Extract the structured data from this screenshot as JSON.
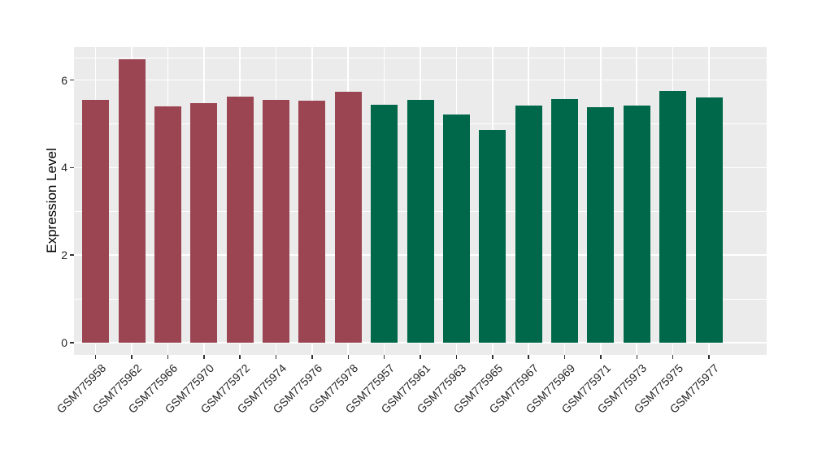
{
  "chart_data": {
    "type": "bar",
    "title": "",
    "xlabel": "",
    "ylabel": "Expression Level",
    "categories": [
      "GSM775958",
      "GSM775962",
      "GSM775966",
      "GSM775970",
      "GSM775972",
      "GSM775974",
      "GSM775976",
      "GSM775978",
      "GSM775957",
      "GSM775961",
      "GSM775963",
      "GSM775965",
      "GSM775967",
      "GSM775969",
      "GSM775971",
      "GSM775973",
      "GSM775975",
      "GSM775977"
    ],
    "values": [
      5.55,
      6.47,
      5.4,
      5.48,
      5.62,
      5.55,
      5.53,
      5.74,
      5.43,
      5.55,
      5.22,
      4.86,
      5.42,
      5.56,
      5.38,
      5.41,
      5.76,
      5.61
    ],
    "bar_colors": [
      "#9B4452",
      "#9B4452",
      "#9B4452",
      "#9B4452",
      "#9B4452",
      "#9B4452",
      "#9B4452",
      "#9B4452",
      "#00684A",
      "#00684A",
      "#00684A",
      "#00684A",
      "#00684A",
      "#00684A",
      "#00684A",
      "#00684A",
      "#00684A",
      "#00684A"
    ],
    "group_colors": {
      "group1_maroon": "#9B4452",
      "group2_green": "#00684A"
    },
    "yticks": [
      0,
      2,
      4,
      6
    ],
    "minor_gridlines": [
      1,
      3,
      5,
      6.5
    ],
    "ylim": [
      0,
      6.75
    ],
    "x_label_angle": 45,
    "grid": true,
    "legend": "none",
    "panel_background": "#EBEBEB",
    "gridline_color": "#FFFFFF",
    "tick_color": "#333333"
  }
}
